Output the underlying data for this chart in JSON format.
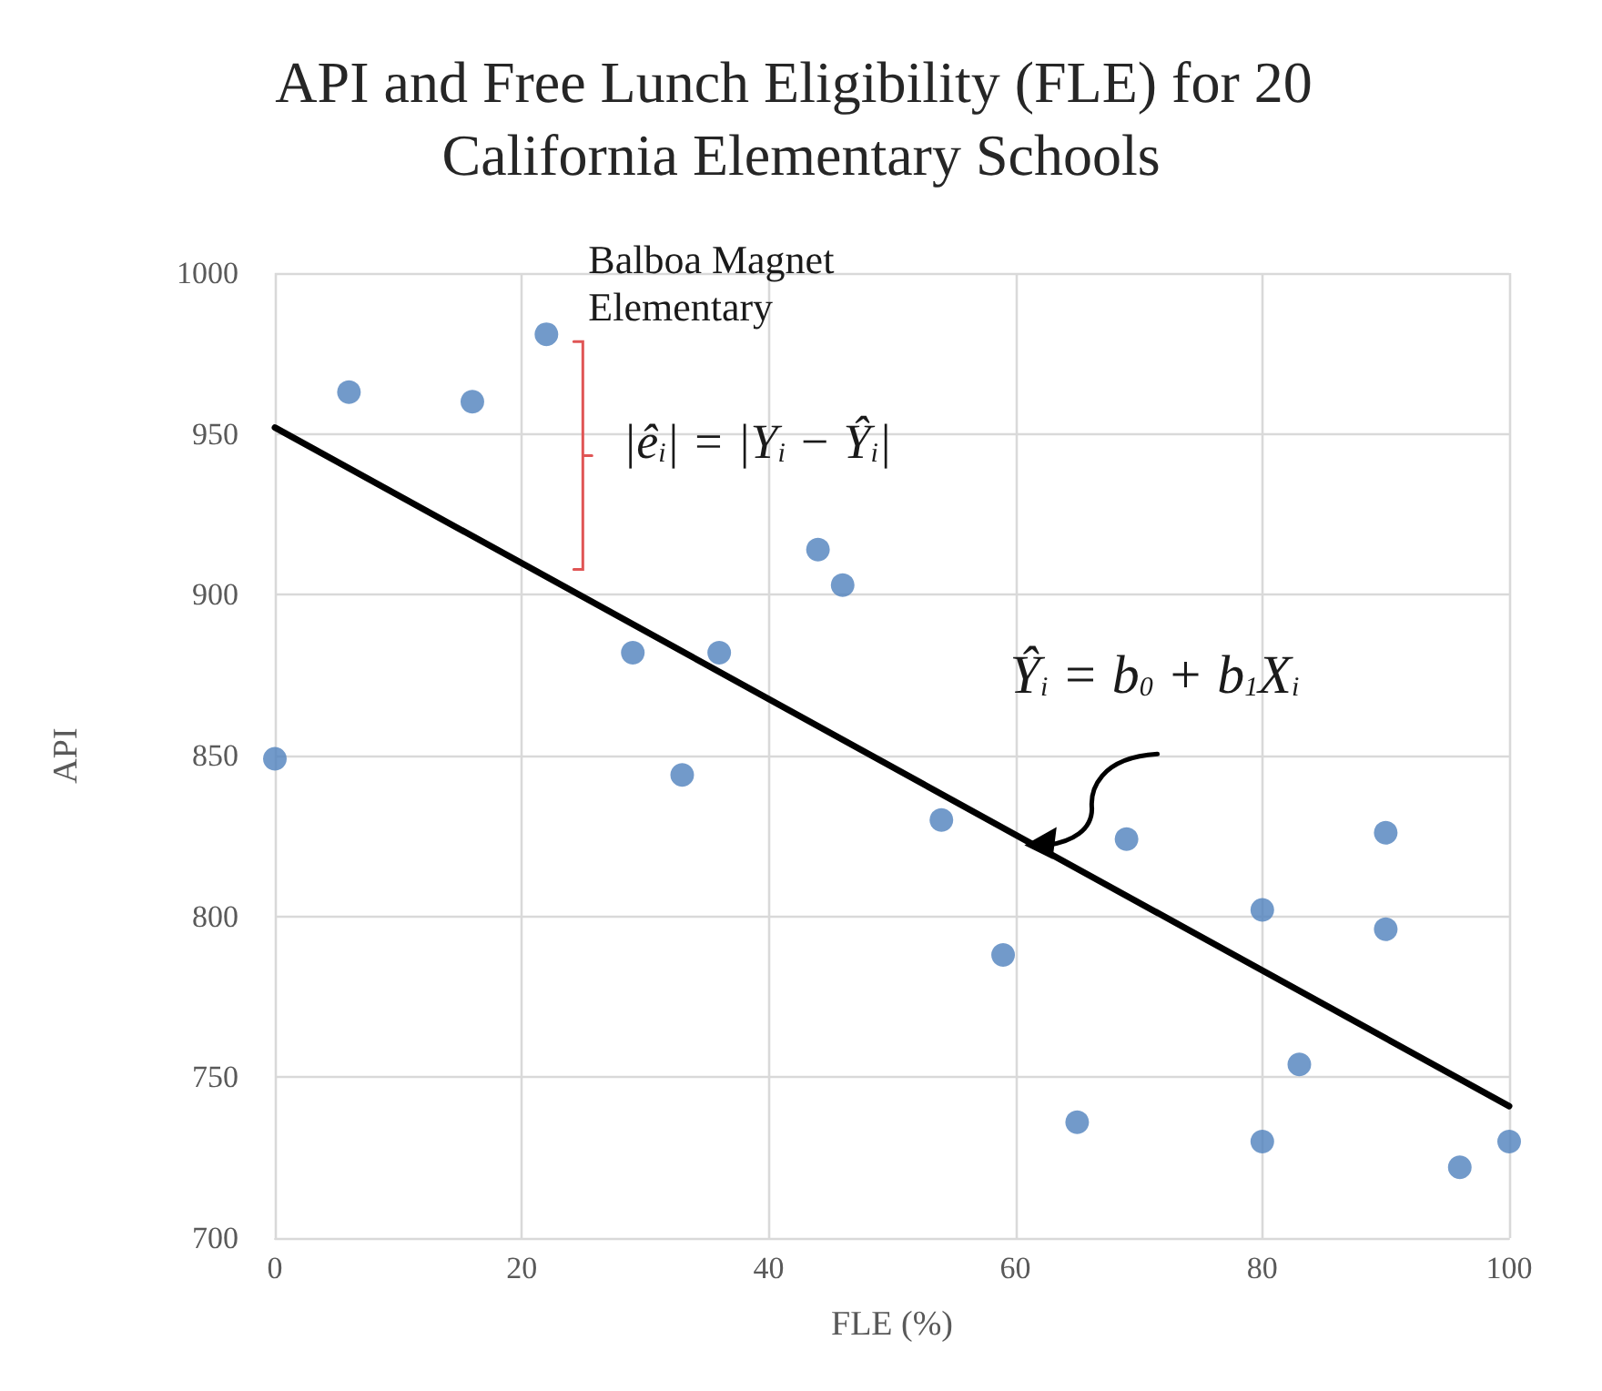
{
  "chart_data": {
    "type": "scatter",
    "title": "API and Free Lunch Eligibility (FLE) for 20 California Elementary Schools",
    "xlabel": "FLE (%)",
    "ylabel": "API",
    "xlim": [
      0,
      100
    ],
    "xticks": [
      0,
      20,
      40,
      60,
      80,
      100
    ],
    "ylim": [
      700,
      1000
    ],
    "yticks": [
      700,
      750,
      800,
      850,
      900,
      950,
      1000
    ],
    "grid": true,
    "series": [
      {
        "color": "#4f81bd",
        "marker": "circle",
        "x": [
          0,
          6,
          16,
          22,
          29,
          33,
          36,
          44,
          46,
          54,
          59,
          65,
          69,
          80,
          80,
          83,
          90,
          90,
          96,
          100
        ],
        "values": [
          849,
          963,
          960,
          981,
          882,
          844,
          882,
          914,
          903,
          830,
          788,
          736,
          824,
          802,
          730,
          754,
          826,
          796,
          722,
          730
        ]
      },
      {
        "type": "line",
        "color": "#000000",
        "marker": "none",
        "line_style": "solid",
        "x": [
          0,
          100
        ],
        "values": [
          952,
          741
        ]
      }
    ],
    "annotations": [
      {
        "text": "Balboa Magnet Elementary",
        "x": 22,
        "y": 981
      },
      "|ê$_{i}$| = |Y$_{i}$ − Ŷ$_{i}$|",
      {
        "text": "Ŷ$_{i}$ = b$_{0}$ + b$_{1}$X$_{i}$",
        "x": 60,
        "y": 825
      }
    ]
  }
}
